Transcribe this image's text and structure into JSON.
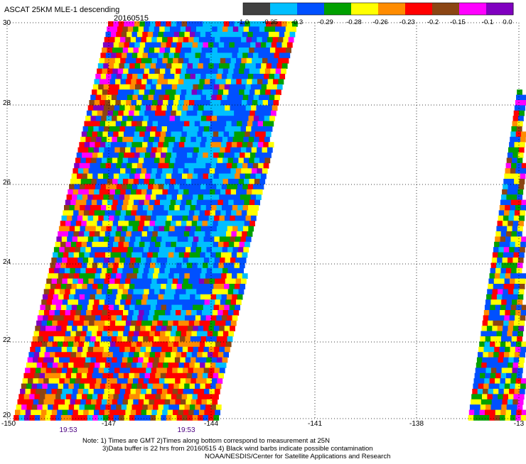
{
  "title": "ASCAT 25KM MLE-1 descending",
  "date": "20160515",
  "colorbar": {
    "labels": [
      "-1.0",
      "-0.35",
      "-0.3",
      "-0.29",
      "-0.28",
      "-0.26",
      "-0.23",
      "-0.2",
      "-0.15",
      "-0.1",
      "0.0"
    ],
    "colors": [
      "#404040",
      "#00bfff",
      "#0050ff",
      "#00a000",
      "#ffff00",
      "#ff8c00",
      "#ff0000",
      "#8b4513",
      "#ff00ff",
      "#8000c0"
    ]
  },
  "axes": {
    "x_ticks": [
      "-150",
      "-147",
      "-144",
      "-141",
      "-138",
      "-13"
    ],
    "y_ticks": [
      "30",
      "28",
      "26",
      "24",
      "22",
      "20"
    ]
  },
  "times": [
    "19:53",
    "19:53"
  ],
  "notes": [
    "Note: 1) Times are GMT 2)Times along bottom correspond to measurement at 25N",
    "3)Data buffer is 22 hrs from 20160515 4) Black wind barbs indicate possible contamination",
    "NOAA/NESDIS/Center for Satellite Applications and Research"
  ]
}
